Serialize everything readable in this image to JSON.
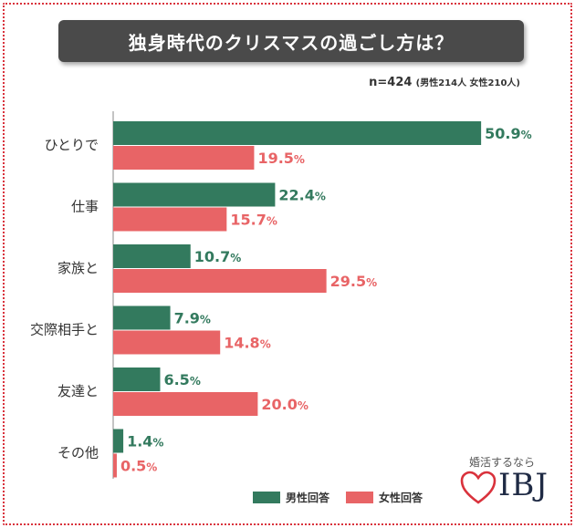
{
  "title": "独身時代のクリスマスの過ごし方は？",
  "sample": {
    "n": "n=424",
    "detail": "(男性214人 女性210人)"
  },
  "colors": {
    "male": "#337a5e",
    "female": "#e86466",
    "title_bg": "#4a4a4a",
    "frame": "#d9323c"
  },
  "legend": {
    "male": "男性回答",
    "female": "女性回答"
  },
  "logo": {
    "tagline": "婚活するなら",
    "name": "IBJ"
  },
  "chart_data": {
    "type": "bar",
    "orientation": "horizontal",
    "categories": [
      "ひとりで",
      "仕事",
      "家族と",
      "交際相手と",
      "友達と",
      "その他"
    ],
    "series": [
      {
        "name": "男性回答",
        "values": [
          50.9,
          22.4,
          10.7,
          7.9,
          6.5,
          1.4
        ]
      },
      {
        "name": "女性回答",
        "values": [
          19.5,
          15.7,
          29.5,
          14.8,
          20.0,
          0.5
        ]
      }
    ],
    "value_suffix": "%",
    "legend_position": "bottom"
  }
}
